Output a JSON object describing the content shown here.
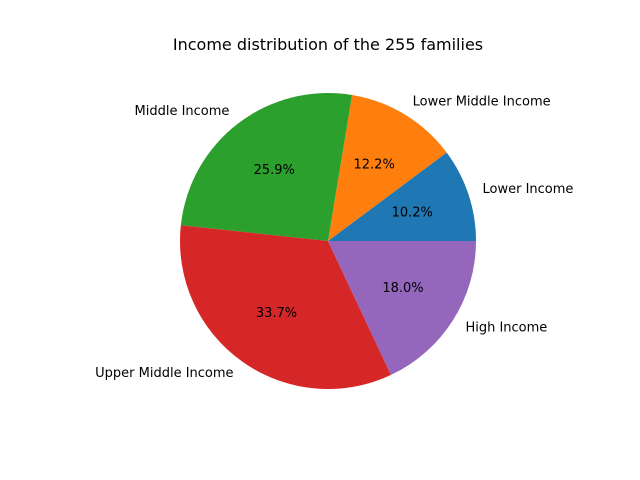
{
  "chart_data": {
    "type": "pie",
    "title": "Income distribution of the 255 families",
    "start_angle_deg": 0,
    "direction": "counterclockwise",
    "slices": [
      {
        "label": "Lower Income",
        "value": 10.2,
        "pct_label": "10.2%",
        "color": "#1f77b4"
      },
      {
        "label": "Lower Middle Income",
        "value": 12.2,
        "pct_label": "12.2%",
        "color": "#ff7f0e"
      },
      {
        "label": "Middle Income",
        "value": 25.9,
        "pct_label": "25.9%",
        "color": "#2ca02c"
      },
      {
        "label": "Upper Middle Income",
        "value": 33.7,
        "pct_label": "33.7%",
        "color": "#d62728"
      },
      {
        "label": "High Income",
        "value": 18.0,
        "pct_label": "18.0%",
        "color": "#9467bd"
      }
    ]
  }
}
